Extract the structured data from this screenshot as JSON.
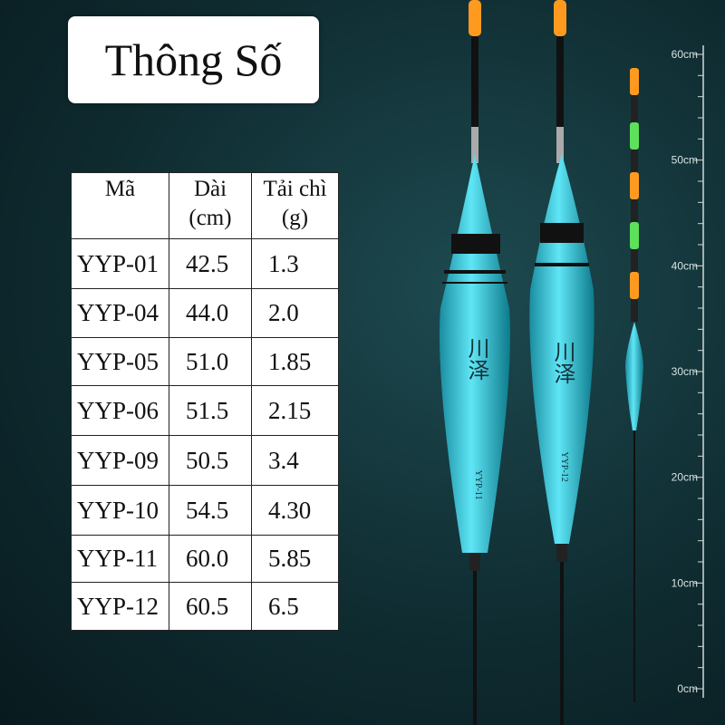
{
  "header": {
    "title": "Thông Số"
  },
  "table": {
    "header": [
      [
        "Mã"
      ],
      [
        "Dài",
        "(cm)"
      ],
      [
        "Tải chì",
        "(g)"
      ]
    ],
    "rows": [
      [
        "YYP-01",
        "42.5",
        "1.3"
      ],
      [
        "YYP-04",
        "44.0",
        "2.0"
      ],
      [
        "YYP-05",
        "51.0",
        "1.85"
      ],
      [
        "YYP-06",
        "51.5",
        "2.15"
      ],
      [
        "YYP-09",
        "50.5",
        "3.4"
      ],
      [
        "YYP-10",
        "54.5",
        "4.30"
      ],
      [
        "YYP-11",
        "60.0",
        "5.85"
      ],
      [
        "YYP-12",
        "60.5",
        "6.5"
      ]
    ]
  },
  "floats": [
    {
      "brand": "川泽",
      "model": "YYP-11"
    },
    {
      "brand": "川泽",
      "model": "YYP-12"
    }
  ],
  "ruler": {
    "labels": [
      "60cm",
      "50cm",
      "40cm",
      "30cm",
      "20cm",
      "10cm",
      "0cm"
    ]
  }
}
